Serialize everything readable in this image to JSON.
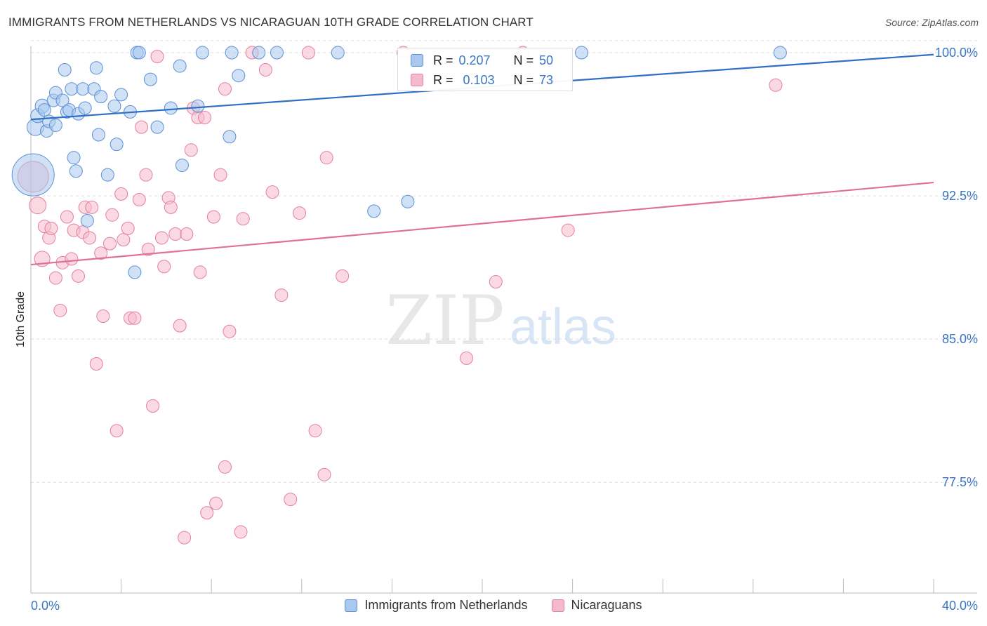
{
  "header": {
    "title": "IMMIGRANTS FROM NETHERLANDS VS NICARAGUAN 10TH GRADE CORRELATION CHART",
    "source": "Source: ZipAtlas.com"
  },
  "watermark": {
    "zip": "ZIP",
    "atlas": "atlas"
  },
  "colors": {
    "blue_fill": "#a9c8ef",
    "blue_stroke": "#5a8fd6",
    "blue_line": "#2f6fc4",
    "pink_fill": "#f5b9cc",
    "pink_stroke": "#e37fa0",
    "pink_line": "#e07098",
    "axis_label": "#3a75c4",
    "grid": "#dddddd"
  },
  "stats": [
    {
      "r_label": "R =",
      "r_value": "0.207",
      "n_label": "N =",
      "n_value": "50"
    },
    {
      "r_label": "R =",
      "r_value": "0.103",
      "n_label": "N =",
      "n_value": "73"
    }
  ],
  "chart_data": {
    "type": "scatter",
    "title": "IMMIGRANTS FROM NETHERLANDS VS NICARAGUAN 10TH GRADE CORRELATION CHART",
    "xlabel": "",
    "ylabel": "10th Grade",
    "xlim": [
      0,
      40
    ],
    "ylim": [
      71.7,
      100.7
    ],
    "x_tick_labels": [
      "0.0%",
      "40.0%"
    ],
    "y_ticks": [
      77.5,
      85.0,
      92.5,
      100.0
    ],
    "y_tick_labels": [
      "77.5%",
      "85.0%",
      "92.5%",
      "100.0%"
    ],
    "grid": true,
    "legend": "bottom",
    "series": [
      {
        "name": "Immigrants from Netherlands",
        "color": "#a9c8ef",
        "r": 0.207,
        "n": 50,
        "trend": [
          [
            0,
            96.5
          ],
          [
            40,
            99.9
          ]
        ],
        "points": [
          [
            0.1,
            93.6,
            30
          ],
          [
            0.2,
            96.1,
            12
          ],
          [
            0.3,
            96.7,
            10
          ],
          [
            0.5,
            97.2,
            10
          ],
          [
            0.6,
            97.0,
            9
          ],
          [
            0.7,
            95.9,
            9
          ],
          [
            0.8,
            96.4,
            9
          ],
          [
            1.0,
            97.5,
            9
          ],
          [
            1.1,
            96.2,
            9
          ],
          [
            1.1,
            97.9,
            9
          ],
          [
            1.4,
            97.5,
            9
          ],
          [
            1.5,
            99.1,
            9
          ],
          [
            1.6,
            96.9,
            9
          ],
          [
            1.7,
            97.0,
            9
          ],
          [
            1.8,
            98.1,
            9
          ],
          [
            1.9,
            94.5,
            9
          ],
          [
            2.0,
            93.8,
            9
          ],
          [
            2.1,
            96.8,
            9
          ],
          [
            2.3,
            98.1,
            9
          ],
          [
            2.4,
            97.1,
            9
          ],
          [
            2.5,
            91.2,
            9
          ],
          [
            2.8,
            98.1,
            9
          ],
          [
            2.9,
            99.2,
            9
          ],
          [
            3.0,
            95.7,
            9
          ],
          [
            3.1,
            97.7,
            9
          ],
          [
            3.4,
            93.6,
            9
          ],
          [
            3.7,
            97.2,
            9
          ],
          [
            3.8,
            95.2,
            9
          ],
          [
            4.0,
            97.8,
            9
          ],
          [
            4.4,
            96.9,
            9
          ],
          [
            4.6,
            88.5,
            9
          ],
          [
            4.7,
            100.0,
            9
          ],
          [
            4.8,
            100.0,
            9
          ],
          [
            5.3,
            98.6,
            9
          ],
          [
            5.6,
            96.1,
            9
          ],
          [
            6.2,
            97.1,
            9
          ],
          [
            6.6,
            99.3,
            9
          ],
          [
            6.7,
            94.1,
            9
          ],
          [
            7.4,
            97.2,
            9
          ],
          [
            7.6,
            100.0,
            9
          ],
          [
            8.8,
            95.6,
            9
          ],
          [
            8.9,
            100.0,
            9
          ],
          [
            9.2,
            98.8,
            9
          ],
          [
            10.1,
            100.0,
            9
          ],
          [
            10.9,
            100.0,
            9
          ],
          [
            13.6,
            100.0,
            9
          ],
          [
            15.2,
            91.7,
            9
          ],
          [
            16.7,
            92.2,
            9
          ],
          [
            24.4,
            100.0,
            9
          ],
          [
            33.2,
            100.0,
            9
          ]
        ]
      },
      {
        "name": "Nicaraguans",
        "color": "#f5b9cc",
        "r": 0.103,
        "n": 73,
        "trend": [
          [
            0,
            88.9
          ],
          [
            40,
            93.2
          ]
        ],
        "points": [
          [
            0.1,
            93.5,
            22
          ],
          [
            0.3,
            92.0,
            12
          ],
          [
            0.5,
            89.2,
            11
          ],
          [
            0.6,
            90.9,
            9
          ],
          [
            0.8,
            90.3,
            9
          ],
          [
            0.9,
            90.8,
            9
          ],
          [
            1.1,
            88.2,
            9
          ],
          [
            1.3,
            86.5,
            9
          ],
          [
            1.4,
            89.0,
            9
          ],
          [
            1.6,
            91.4,
            9
          ],
          [
            1.8,
            89.2,
            9
          ],
          [
            1.9,
            90.7,
            9
          ],
          [
            2.1,
            88.3,
            9
          ],
          [
            2.3,
            90.6,
            9
          ],
          [
            2.4,
            91.9,
            9
          ],
          [
            2.6,
            90.3,
            9
          ],
          [
            2.7,
            91.9,
            9
          ],
          [
            2.9,
            83.7,
            9
          ],
          [
            3.1,
            89.5,
            9
          ],
          [
            3.2,
            86.2,
            9
          ],
          [
            3.5,
            90.0,
            9
          ],
          [
            3.6,
            91.5,
            9
          ],
          [
            3.8,
            80.2,
            9
          ],
          [
            4.0,
            92.6,
            9
          ],
          [
            4.1,
            90.2,
            9
          ],
          [
            4.3,
            90.8,
            9
          ],
          [
            4.4,
            86.1,
            9
          ],
          [
            4.6,
            86.1,
            9
          ],
          [
            4.8,
            92.3,
            9
          ],
          [
            4.9,
            96.1,
            9
          ],
          [
            5.1,
            93.6,
            9
          ],
          [
            5.2,
            89.7,
            9
          ],
          [
            5.4,
            81.5,
            9
          ],
          [
            5.6,
            99.8,
            9
          ],
          [
            5.8,
            90.3,
            9
          ],
          [
            5.9,
            88.8,
            9
          ],
          [
            6.1,
            92.4,
            9
          ],
          [
            6.2,
            91.9,
            9
          ],
          [
            6.4,
            90.5,
            9
          ],
          [
            6.6,
            85.7,
            9
          ],
          [
            6.8,
            74.6,
            9
          ],
          [
            6.9,
            90.5,
            9
          ],
          [
            7.1,
            94.9,
            9
          ],
          [
            7.2,
            97.1,
            9
          ],
          [
            7.4,
            96.6,
            9
          ],
          [
            7.5,
            88.5,
            9
          ],
          [
            7.7,
            96.6,
            9
          ],
          [
            7.8,
            75.9,
            9
          ],
          [
            8.1,
            91.4,
            9
          ],
          [
            8.2,
            76.4,
            9
          ],
          [
            8.4,
            93.6,
            9
          ],
          [
            8.6,
            98.1,
            9
          ],
          [
            8.6,
            78.3,
            9
          ],
          [
            8.8,
            85.4,
            9
          ],
          [
            9.3,
            74.9,
            9
          ],
          [
            9.4,
            91.3,
            9
          ],
          [
            9.8,
            100.0,
            9
          ],
          [
            10.4,
            99.1,
            9
          ],
          [
            10.7,
            92.7,
            9
          ],
          [
            11.1,
            87.3,
            9
          ],
          [
            11.5,
            76.6,
            9
          ],
          [
            11.9,
            91.6,
            9
          ],
          [
            12.3,
            100.0,
            9
          ],
          [
            12.6,
            80.2,
            9
          ],
          [
            13.0,
            77.9,
            9
          ],
          [
            13.1,
            94.5,
            9
          ],
          [
            13.8,
            88.3,
            9
          ],
          [
            16.5,
            100.0,
            9
          ],
          [
            19.3,
            84.0,
            9
          ],
          [
            20.6,
            88.0,
            9
          ],
          [
            21.8,
            100.0,
            9
          ],
          [
            23.8,
            90.7,
            9
          ],
          [
            33.0,
            98.3,
            9
          ]
        ]
      }
    ]
  }
}
